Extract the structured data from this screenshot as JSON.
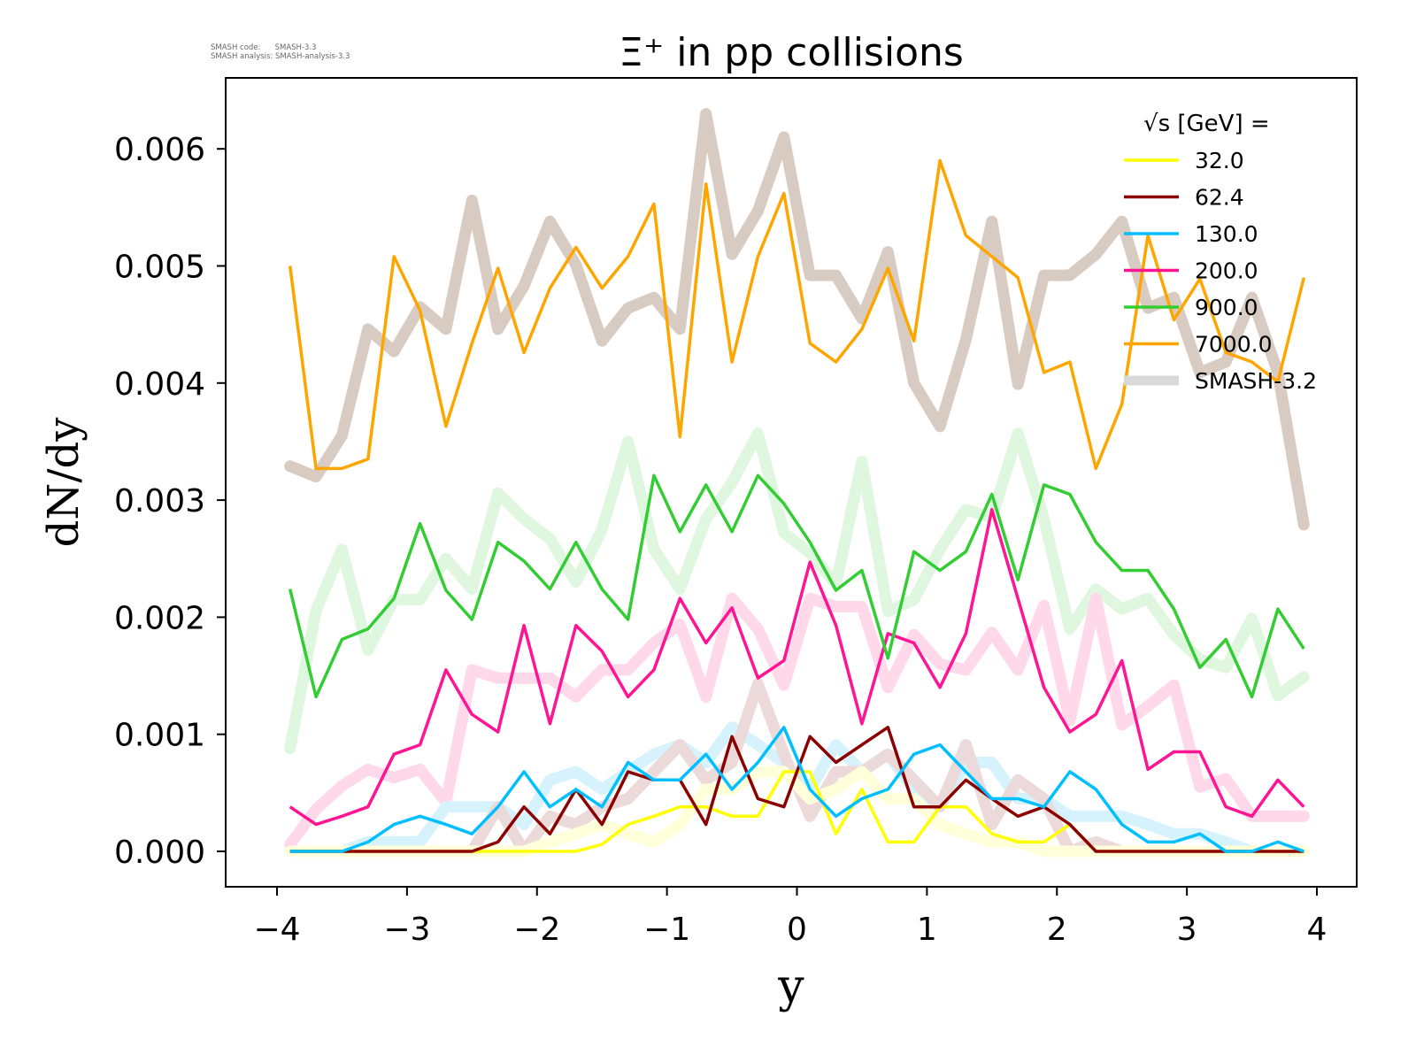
{
  "meta": {
    "line1": "SMASH code:      SMASH-3.3",
    "line2": "SMASH analysis: SMASH-analysis-3.3"
  },
  "chart_data": {
    "type": "line",
    "title": "Ξ⁺ in pp collisions",
    "xlabel": "y",
    "ylabel": "dN/dy",
    "xlim": [
      -4.4,
      4.3
    ],
    "ylim": [
      -0.0003,
      0.0066
    ],
    "xticks": [
      -4,
      -3,
      -2,
      -1,
      0,
      1,
      2,
      3,
      4
    ],
    "xtick_labels": [
      "−4",
      "−3",
      "−2",
      "−1",
      "0",
      "1",
      "2",
      "3",
      "4"
    ],
    "yticks": [
      0.0,
      0.001,
      0.002,
      0.003,
      0.004,
      0.005,
      0.006
    ],
    "ytick_labels": [
      "0.000",
      "0.001",
      "0.002",
      "0.003",
      "0.004",
      "0.005",
      "0.006"
    ],
    "grid": false,
    "legend": {
      "title": "√s  [GeV] =",
      "placement": "top-right",
      "entries": [
        {
          "label": "32.0",
          "color": "#ffff00",
          "style": "thin"
        },
        {
          "label": "62.4",
          "color": "#8b0000",
          "style": "thin"
        },
        {
          "label": "130.0",
          "color": "#00bfff",
          "style": "thin"
        },
        {
          "label": "200.0",
          "color": "#ff1493",
          "style": "thin"
        },
        {
          "label": "900.0",
          "color": "#32cd32",
          "style": "thin"
        },
        {
          "label": "7000.0",
          "color": "#ffa500",
          "style": "thin"
        },
        {
          "label": "SMASH-3.2",
          "color": "#d9d9d9",
          "style": "thick"
        }
      ]
    },
    "x": [
      -3.9,
      -3.7,
      -3.5,
      -3.3,
      -3.1,
      -2.9,
      -2.7,
      -2.5,
      -2.3,
      -2.1,
      -1.9,
      -1.7,
      -1.5,
      -1.3,
      -1.1,
      -0.9,
      -0.7,
      -0.5,
      -0.3,
      -0.1,
      0.1,
      0.3,
      0.5,
      0.7,
      0.9,
      1.1,
      1.3,
      1.5,
      1.7,
      1.9,
      2.1,
      2.3,
      2.5,
      2.7,
      2.9,
      3.1,
      3.3,
      3.5,
      3.7,
      3.9
    ],
    "series": [
      {
        "name": "32.0",
        "energy": 32.0,
        "color": "#ffff00",
        "kind": "current",
        "values": [
          0,
          0,
          0,
          0,
          0,
          0,
          0,
          0,
          0,
          0,
          0,
          0,
          6e-05,
          0.00023,
          0.0003,
          0.00038,
          0.00038,
          0.0003,
          0.0003,
          0.00068,
          0.00068,
          0.00015,
          0.00053,
          8e-05,
          8e-05,
          0.00038,
          0.00038,
          0.00015,
          8e-05,
          8e-05,
          0.00023,
          0,
          0,
          0,
          0,
          0,
          0,
          0,
          0,
          0
        ]
      },
      {
        "name": "62.4",
        "energy": 62.4,
        "color": "#8b0000",
        "kind": "current",
        "values": [
          0,
          0,
          0,
          0,
          0,
          0,
          0,
          0,
          8e-05,
          0.00038,
          0.00015,
          0.00053,
          0.00023,
          0.00068,
          0.00061,
          0.00061,
          0.00023,
          0.00098,
          0.00045,
          0.00038,
          0.00098,
          0.00076,
          0.00091,
          0.00106,
          0.00038,
          0.00038,
          0.00061,
          0.00045,
          0.0003,
          0.00038,
          0.00023,
          0,
          0,
          0,
          0,
          0,
          0,
          0,
          0,
          0
        ]
      },
      {
        "name": "130.0",
        "energy": 130.0,
        "color": "#00bfff",
        "kind": "current",
        "values": [
          0,
          0,
          0,
          8e-05,
          0.00023,
          0.0003,
          0.00023,
          0.00015,
          0.00038,
          0.00068,
          0.00038,
          0.00053,
          0.00038,
          0.00076,
          0.00061,
          0.00061,
          0.00083,
          0.00053,
          0.00076,
          0.00106,
          0.00053,
          0.0003,
          0.00045,
          0.00053,
          0.00083,
          0.00091,
          0.00068,
          0.00045,
          0.00045,
          0.00038,
          0.00068,
          0.00053,
          0.00023,
          8e-05,
          8e-05,
          0.00015,
          0,
          0,
          8e-05,
          0
        ]
      },
      {
        "name": "200.0",
        "energy": 200.0,
        "color": "#ff1493",
        "kind": "current",
        "values": [
          0.00038,
          0.00023,
          0.0003,
          0.00038,
          0.00083,
          0.00091,
          0.00155,
          0.00117,
          0.00102,
          0.00193,
          0.00109,
          0.00193,
          0.00171,
          0.00132,
          0.00155,
          0.00216,
          0.00178,
          0.00208,
          0.00148,
          0.00163,
          0.00247,
          0.00193,
          0.00109,
          0.00186,
          0.00178,
          0.0014,
          0.00186,
          0.00292,
          0.00216,
          0.0014,
          0.00102,
          0.00117,
          0.00163,
          0.0007,
          0.00085,
          0.00085,
          0.00038,
          0.0003,
          0.00061,
          0.00038
        ]
      },
      {
        "name": "900.0",
        "energy": 900.0,
        "color": "#32cd32",
        "kind": "current",
        "values": [
          0.00224,
          0.00132,
          0.00181,
          0.0019,
          0.00216,
          0.0028,
          0.00223,
          0.00198,
          0.00264,
          0.00248,
          0.00224,
          0.00264,
          0.00224,
          0.00198,
          0.00321,
          0.00273,
          0.00313,
          0.00273,
          0.00321,
          0.00297,
          0.00264,
          0.00223,
          0.0024,
          0.00165,
          0.00256,
          0.0024,
          0.00256,
          0.00305,
          0.00232,
          0.00313,
          0.00305,
          0.00264,
          0.0024,
          0.0024,
          0.00207,
          0.00157,
          0.00181,
          0.00132,
          0.00207,
          0.00173
        ]
      },
      {
        "name": "7000.0",
        "energy": 7000.0,
        "color": "#ffa500",
        "kind": "current",
        "values": [
          0.005,
          0.00327,
          0.00327,
          0.00335,
          0.00508,
          0.00462,
          0.00363,
          0.00434,
          0.00498,
          0.00426,
          0.00481,
          0.00516,
          0.00481,
          0.00508,
          0.00553,
          0.00354,
          0.0057,
          0.00418,
          0.00508,
          0.00562,
          0.00434,
          0.00418,
          0.00446,
          0.00498,
          0.00436,
          0.0059,
          0.00526,
          0.00508,
          0.0049,
          0.00409,
          0.00418,
          0.00327,
          0.00382,
          0.00526,
          0.00454,
          0.00489,
          0.00426,
          0.00418,
          0.00401,
          0.0049
        ]
      },
      {
        "name": "7000.0 (SMASH-3.2)",
        "energy": 7000.0,
        "color": "#d8cbc2",
        "kind": "reference",
        "values": [
          0.00329,
          0.0032,
          0.00355,
          0.00446,
          0.00427,
          0.00465,
          0.00446,
          0.00556,
          0.00446,
          0.00483,
          0.00538,
          0.00501,
          0.00436,
          0.00464,
          0.00473,
          0.00446,
          0.0063,
          0.0051,
          0.00547,
          0.0061,
          0.00492,
          0.00492,
          0.00455,
          0.00512,
          0.004,
          0.00363,
          0.00437,
          0.00538,
          0.00399,
          0.00492,
          0.00492,
          0.0051,
          0.00538,
          0.00464,
          0.00473,
          0.00409,
          0.00418,
          0.00473,
          0.00409,
          0.00279
        ]
      },
      {
        "name": "900.0 (SMASH-3.2)",
        "energy": 900.0,
        "color": "#dff7df",
        "kind": "reference",
        "values": [
          0.00088,
          0.00206,
          0.00258,
          0.00172,
          0.00215,
          0.00215,
          0.0025,
          0.00224,
          0.00306,
          0.00284,
          0.00267,
          0.0023,
          0.00275,
          0.0035,
          0.00258,
          0.00224,
          0.00284,
          0.00315,
          0.00357,
          0.00272,
          0.00255,
          0.00228,
          0.00333,
          0.00205,
          0.00215,
          0.00258,
          0.00292,
          0.00285,
          0.00357,
          0.00284,
          0.0019,
          0.00224,
          0.00207,
          0.00216,
          0.00185,
          0.00164,
          0.00157,
          0.00199,
          0.00133,
          0.00149
        ]
      },
      {
        "name": "200.0 (SMASH-3.2)",
        "energy": 200.0,
        "color": "#ffd9ea",
        "kind": "reference",
        "values": [
          6e-05,
          0.00036,
          0.00056,
          0.0007,
          0.00063,
          0.0007,
          0.00042,
          0.00155,
          0.00148,
          0.00148,
          0.00148,
          0.00132,
          0.00155,
          0.00155,
          0.00178,
          0.00194,
          0.00132,
          0.00216,
          0.0019,
          0.00142,
          0.00216,
          0.00209,
          0.00209,
          0.0014,
          0.00185,
          0.0016,
          0.00155,
          0.00187,
          0.00155,
          0.0021,
          0.00112,
          0.00216,
          0.00108,
          0.00124,
          0.00142,
          0.00055,
          0.00062,
          0.0003,
          0.0003,
          0.0003
        ]
      },
      {
        "name": "130.0 (SMASH-3.2)",
        "energy": 130.0,
        "color": "#d6f2fc",
        "kind": "reference",
        "values": [
          0,
          0,
          0,
          8e-05,
          8e-05,
          8e-05,
          0.00038,
          0.00038,
          0.00038,
          0.00023,
          0.00061,
          0.00068,
          0.00053,
          0.00068,
          0.00083,
          0.00091,
          0.00076,
          0.00106,
          0.00091,
          0.00076,
          0.00053,
          0.00091,
          0.00068,
          0.00083,
          0.00053,
          0.00038,
          0.00076,
          0.00076,
          0.00045,
          0.00045,
          0.0003,
          0.0003,
          0.0003,
          0.00023,
          0.00015,
          0.00015,
          8e-05,
          0,
          0,
          0
        ]
      },
      {
        "name": "62.4 (SMASH-3.2)",
        "energy": 62.4,
        "color": "#ecd9d9",
        "kind": "reference",
        "values": [
          0,
          0,
          0,
          0,
          0,
          0,
          0,
          0,
          0.00038,
          0,
          0.0003,
          0.00023,
          0.00038,
          0.00045,
          0.00068,
          0.00091,
          0.00061,
          0.00076,
          0.00143,
          0.00083,
          0.0003,
          0.00068,
          0.00068,
          0.00083,
          0.00061,
          0.00038,
          0.00091,
          0.00023,
          0.00061,
          0.00045,
          0,
          8e-05,
          0,
          0,
          0,
          0,
          0,
          0,
          0,
          0
        ]
      },
      {
        "name": "32.0 (SMASH-3.2)",
        "energy": 32.0,
        "color": "#ffffd9",
        "kind": "reference",
        "values": [
          0,
          0,
          0,
          0,
          0,
          0,
          0,
          0,
          0,
          0,
          8e-05,
          0.00015,
          0.00023,
          0.00015,
          8e-05,
          0.00023,
          0.00053,
          0.00053,
          0.00068,
          0.00068,
          0.00045,
          0.00053,
          0.00068,
          0.00045,
          0.00045,
          0.00023,
          0.00015,
          8e-05,
          8e-05,
          0,
          0,
          0,
          0,
          0,
          0,
          0,
          0,
          0,
          0,
          0
        ]
      }
    ]
  }
}
